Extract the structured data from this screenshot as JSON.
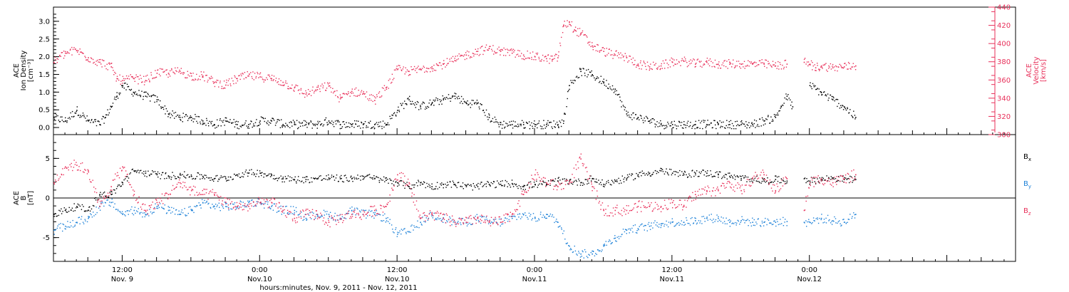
{
  "colors": {
    "black": "#000000",
    "pink": "#e8305a",
    "blue": "#1e82d8",
    "axis": "#000000"
  },
  "xaxis": {
    "title": "hours:minutes, Nov. 9, 2011 - Nov. 12, 2011",
    "range_hours": [
      6,
      90
    ],
    "ticks": [
      {
        "hour": 12,
        "time": "12:00",
        "date": "Nov. 9"
      },
      {
        "hour": 24,
        "time": "0:00",
        "date": "Nov.10"
      },
      {
        "hour": 36,
        "time": "12:00",
        "date": "Nov.10"
      },
      {
        "hour": 48,
        "time": "0:00",
        "date": "Nov.11"
      },
      {
        "hour": 60,
        "time": "12:00",
        "date": "Nov.11"
      },
      {
        "hour": 72,
        "time": "0:00",
        "date": "Nov.12"
      }
    ]
  },
  "chart_data": [
    {
      "type": "scatter",
      "title": "",
      "ylabel_left": [
        "ACE",
        "Ion Density",
        "[cm⁻³]"
      ],
      "ylabel_right": [
        "ACE",
        "Velocity",
        "[km/s]"
      ],
      "ylim_left": [
        -0.2,
        3.4
      ],
      "ylim_right": [
        300,
        440
      ],
      "yticks_left": [
        "0.0",
        "0.5",
        "1.0",
        "1.5",
        "2.0",
        "2.5",
        "3.0"
      ],
      "yticks_right": [
        "300",
        "320",
        "340",
        "360",
        "380",
        "400",
        "420",
        "440"
      ],
      "series": [
        {
          "axis": "left",
          "color": "black",
          "x": [
            6,
            7,
            8,
            9,
            10,
            10.5,
            11,
            11.5,
            12,
            13,
            14,
            15,
            16,
            17,
            18,
            19,
            20,
            21,
            22,
            23,
            24,
            25,
            26,
            27,
            28,
            29,
            30,
            31,
            32,
            33,
            34,
            35,
            36,
            37,
            38,
            39,
            40,
            41,
            42,
            43,
            44,
            45,
            46,
            47,
            48,
            49,
            50,
            50.5,
            51,
            52,
            53,
            54,
            55,
            56,
            57,
            58,
            59,
            60,
            61,
            62,
            63,
            64,
            65,
            66,
            67,
            68,
            69,
            69.5,
            70,
            70.5,
            71,
            71.5,
            72,
            73,
            74,
            75,
            76
          ],
          "y": [
            0.3,
            0.2,
            0.5,
            0.2,
            0.1,
            0.3,
            0.6,
            0.9,
            1.2,
            1.0,
            0.9,
            0.8,
            0.4,
            0.3,
            0.3,
            0.2,
            0.1,
            0.2,
            0.1,
            0.1,
            0.2,
            0.2,
            0.1,
            0.1,
            0.1,
            0.1,
            0.2,
            0.1,
            0.1,
            0.1,
            0.1,
            0.1,
            0.5,
            0.8,
            0.6,
            0.7,
            0.8,
            0.9,
            0.7,
            0.7,
            0.3,
            0.1,
            0.1,
            0.1,
            0.1,
            0.1,
            0.1,
            0.2,
            1.2,
            1.6,
            1.5,
            1.3,
            1.1,
            0.4,
            0.3,
            0.2,
            0.1,
            0.1,
            0.1,
            0.1,
            0.1,
            0.1,
            0.1,
            0.1,
            0.1,
            0.2,
            0.3,
            0.6,
            0.9,
            0.6,
            null,
            null,
            1.2,
            1.0,
            0.8,
            0.6,
            0.3
          ]
        },
        {
          "axis": "right",
          "color": "pink",
          "x": [
            6,
            7,
            8,
            9,
            10,
            11,
            11.5,
            12,
            13,
            14,
            15,
            16,
            17,
            18,
            19,
            20,
            21,
            22,
            23,
            24,
            25,
            26,
            27,
            28,
            29,
            30,
            31,
            32,
            33,
            34,
            35,
            36,
            37,
            38,
            39,
            40,
            41,
            42,
            43,
            44,
            45,
            46,
            47,
            48,
            49,
            49.5,
            50,
            50.5,
            51,
            51.5,
            52,
            53,
            54,
            55,
            56,
            57,
            58,
            59,
            60,
            61,
            62,
            63,
            64,
            65,
            66,
            67,
            68,
            69,
            70,
            70.5,
            71,
            71.5,
            72,
            72.5,
            73,
            74,
            75,
            76
          ],
          "y": [
            380,
            390,
            393,
            385,
            380,
            375,
            362,
            360,
            362,
            360,
            368,
            368,
            370,
            365,
            365,
            358,
            355,
            362,
            365,
            364,
            362,
            358,
            352,
            345,
            350,
            354,
            340,
            348,
            346,
            338,
            352,
            372,
            370,
            372,
            375,
            378,
            382,
            388,
            392,
            395,
            392,
            390,
            388,
            386,
            384,
            383,
            385,
            420,
            424,
            415,
            412,
            398,
            392,
            388,
            385,
            378,
            375,
            376,
            380,
            381,
            378,
            380,
            378,
            378,
            378,
            378,
            378,
            376,
            378,
            null,
            null,
            380,
            378,
            374,
            376,
            374,
            375,
            376
          ]
        }
      ]
    },
    {
      "type": "scatter",
      "title": "",
      "ylabel_left": [
        "ACE",
        "B",
        "[nT]"
      ],
      "ylim": [
        -8,
        8
      ],
      "yticks": [
        "-5",
        "0",
        "5"
      ],
      "zero_line": true,
      "series": [
        {
          "name": "B",
          "sub": "x",
          "color": "black",
          "x": [
            6,
            7,
            8,
            9,
            10,
            11,
            12,
            13,
            14,
            15,
            16,
            17,
            18,
            19,
            20,
            21,
            22,
            23,
            24,
            25,
            26,
            27,
            28,
            29,
            30,
            31,
            32,
            33,
            34,
            35,
            36,
            37,
            38,
            39,
            40,
            41,
            42,
            43,
            44,
            45,
            46,
            47,
            48,
            49,
            50,
            51,
            52,
            53,
            54,
            55,
            56,
            57,
            58,
            59,
            60,
            61,
            62,
            63,
            64,
            65,
            66,
            67,
            68,
            69,
            70,
            70.5,
            71,
            71.5,
            72,
            73,
            74,
            75,
            76
          ],
          "y": [
            -2.0,
            -1.5,
            -1.0,
            -1.5,
            0.5,
            0.5,
            2.0,
            3.5,
            3.2,
            3.0,
            2.8,
            3.0,
            2.8,
            2.8,
            2.5,
            2.5,
            3.0,
            3.2,
            3.2,
            2.9,
            2.5,
            2.4,
            2.4,
            2.5,
            2.6,
            2.5,
            2.5,
            2.8,
            2.5,
            2.3,
            2.0,
            1.5,
            2.0,
            1.5,
            1.8,
            1.8,
            1.5,
            1.5,
            1.8,
            1.8,
            1.9,
            1.5,
            1.8,
            1.8,
            2.2,
            2.2,
            2.0,
            2.5,
            1.8,
            2.2,
            2.5,
            3.0,
            3.2,
            3.5,
            3.2,
            3.0,
            3.2,
            3.2,
            3.0,
            2.8,
            2.5,
            2.5,
            2.2,
            2.4,
            2.2,
            null,
            null,
            2.5,
            2.2,
            2.4,
            2.6,
            2.4,
            2.4
          ]
        },
        {
          "name": "B",
          "sub": "y",
          "color": "blue",
          "x": [
            6,
            7,
            8,
            9,
            10,
            11,
            12,
            13,
            14,
            15,
            16,
            17,
            18,
            19,
            20,
            21,
            22,
            23,
            24,
            25,
            26,
            27,
            28,
            29,
            30,
            31,
            32,
            33,
            34,
            35,
            36,
            37,
            38,
            39,
            40,
            41,
            42,
            43,
            44,
            45,
            46,
            47,
            48,
            49,
            50,
            51,
            52,
            53,
            54,
            55,
            56,
            57,
            58,
            59,
            60,
            61,
            62,
            63,
            64,
            65,
            66,
            67,
            68,
            69,
            70,
            70.5,
            71,
            71.5,
            72,
            73,
            74,
            75,
            76
          ],
          "y": [
            -4.0,
            -3.5,
            -3.0,
            -2.5,
            -1.0,
            -0.5,
            -2.0,
            -1.5,
            -2.0,
            -1.0,
            -1.5,
            -2.0,
            -1.5,
            -0.5,
            -1.0,
            -1.0,
            -1.0,
            -0.5,
            -0.5,
            -1.0,
            -1.5,
            -1.5,
            -2.5,
            -2.0,
            -2.0,
            -2.5,
            -1.5,
            -2.0,
            -2.0,
            -2.5,
            -4.5,
            -4.2,
            -3.0,
            -2.0,
            -2.5,
            -3.0,
            -3.0,
            -2.5,
            -3.0,
            -3.0,
            -2.5,
            -2.0,
            -2.5,
            -2.0,
            -3.0,
            -6.0,
            -7.0,
            -7.0,
            -6.0,
            -5.0,
            -4.0,
            -3.8,
            -3.5,
            -3.2,
            -3.0,
            -3.0,
            -2.8,
            -2.5,
            -2.5,
            -3.0,
            -2.8,
            -3.0,
            -3.0,
            -3.0,
            -2.9,
            null,
            null,
            -3.0,
            -3.0,
            -2.5,
            -2.8,
            -3.0,
            -2.0
          ]
        },
        {
          "name": "B",
          "sub": "z",
          "color": "pink",
          "x": [
            6,
            7,
            8,
            9,
            10,
            11,
            12,
            13,
            14,
            15,
            16,
            17,
            18,
            19,
            20,
            21,
            22,
            23,
            24,
            25,
            26,
            27,
            28,
            29,
            30,
            31,
            32,
            33,
            34,
            35,
            36,
            37,
            38,
            39,
            40,
            41,
            42,
            43,
            44,
            45,
            46,
            47,
            48,
            49,
            50,
            51,
            52,
            53,
            54,
            55,
            56,
            57,
            58,
            59,
            60,
            61,
            62,
            63,
            64,
            65,
            66,
            67,
            68,
            69,
            70,
            70.5,
            71,
            71.5,
            72,
            73,
            74,
            75,
            76
          ],
          "y": [
            2.0,
            4.0,
            4.2,
            3.5,
            -1.0,
            1.5,
            4.0,
            0.5,
            -1.5,
            -0.5,
            0.5,
            2.0,
            1.0,
            0.5,
            0.5,
            -0.5,
            -1.0,
            -1.0,
            -0.5,
            -0.5,
            -1.5,
            -2.5,
            -2.0,
            -2.0,
            -3.0,
            -2.5,
            -2.0,
            -2.0,
            -1.5,
            -1.0,
            3.0,
            2.0,
            -2.5,
            -2.0,
            -2.5,
            -3.0,
            -3.0,
            -2.5,
            -3.0,
            -3.0,
            -2.0,
            0.5,
            3.0,
            2.0,
            1.5,
            2.0,
            5.0,
            1.5,
            -1.5,
            -1.5,
            -1.5,
            -1.0,
            -1.0,
            -1.0,
            -0.5,
            -1.0,
            0.5,
            1.0,
            1.0,
            2.0,
            1.0,
            2.5,
            3.0,
            1.0,
            2.5,
            null,
            null,
            -1.5,
            2.0,
            2.5,
            2.0,
            2.5,
            3.0
          ]
        }
      ]
    }
  ]
}
